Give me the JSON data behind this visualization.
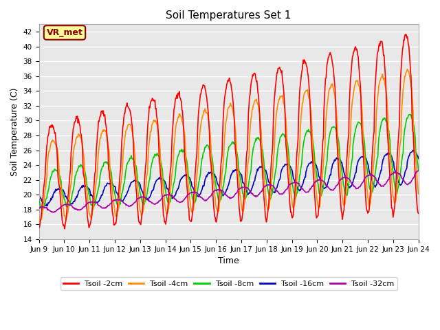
{
  "title": "Soil Temperatures Set 1",
  "xlabel": "Time",
  "ylabel": "Soil Temperature (C)",
  "ylim": [
    14,
    43
  ],
  "yticks": [
    14,
    16,
    18,
    20,
    22,
    24,
    26,
    28,
    30,
    32,
    34,
    36,
    38,
    40,
    42
  ],
  "xtick_labels": [
    "Jun 9",
    "Jun 10",
    "Jun 11",
    "Jun 12",
    "Jun 13",
    "Jun 14",
    "Jun 15",
    "Jun 16",
    "Jun 17",
    "Jun 18",
    "Jun 19",
    "Jun 20",
    "Jun 21",
    "Jun 22",
    "Jun 23",
    "Jun 24"
  ],
  "colors": {
    "2cm": "#FF0000",
    "4cm": "#FF8C00",
    "8cm": "#00CC00",
    "16cm": "#0000BB",
    "32cm": "#AA00AA"
  },
  "legend_labels": [
    "Tsoil -2cm",
    "Tsoil -4cm",
    "Tsoil -8cm",
    "Tsoil -16cm",
    "Tsoil -32cm"
  ],
  "annotation_text": "VR_met",
  "annotation_color": "#8B0000",
  "annotation_bg": "#FFFF99",
  "bg_color": "#E8E8E8",
  "fig_bg_color": "#FFFFFF",
  "grid_color": "#FFFFFF",
  "linewidth": 1.2
}
